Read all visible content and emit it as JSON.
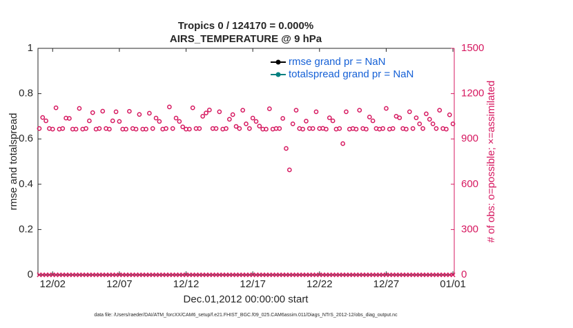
{
  "chart_data": {
    "type": "scatter",
    "title": "Tropics 0 / 124170 = 0.000%",
    "subtitle": "AIRS_TEMPERATURE @ 9 hPa",
    "xlabel": "Dec.01,2012 00:00:00 start",
    "ylabel": "rmse and totalspread",
    "y2label": "# of obs: o=possible; ×=assimilated",
    "footnote": "data file: /Users/raeder/DAI/ATM_forcXX/CAM6_setup/f.e21.FHIST_BGC.f09_025.CAM6assim.011/Diags_NTrS_2012-12/obs_diag_output.nc",
    "legend": "upper right",
    "xlim": [
      -0.1,
      31.1
    ],
    "xticks": [
      {
        "value": 1,
        "label": "12/02"
      },
      {
        "value": 6,
        "label": "12/07"
      },
      {
        "value": 11,
        "label": "12/12"
      },
      {
        "value": 16,
        "label": "12/17"
      },
      {
        "value": 21,
        "label": "12/22"
      },
      {
        "value": 26,
        "label": "12/27"
      },
      {
        "value": 31,
        "label": "01/01"
      }
    ],
    "ylim": [
      0,
      1
    ],
    "yticks": [
      0,
      0.2,
      0.4,
      0.6,
      0.8,
      1
    ],
    "y2lim": [
      0,
      1500
    ],
    "y2ticks": [
      0,
      300,
      600,
      900,
      1200,
      1500
    ],
    "x": [
      0,
      0.25,
      0.5,
      0.75,
      1,
      1.25,
      1.5,
      1.75,
      2,
      2.25,
      2.5,
      2.75,
      3,
      3.25,
      3.5,
      3.75,
      4,
      4.25,
      4.5,
      4.75,
      5,
      5.25,
      5.5,
      5.75,
      6,
      6.25,
      6.5,
      6.75,
      7,
      7.25,
      7.5,
      7.75,
      8,
      8.25,
      8.5,
      8.75,
      9,
      9.25,
      9.5,
      9.75,
      10,
      10.25,
      10.5,
      10.75,
      11,
      11.25,
      11.5,
      11.75,
      12,
      12.25,
      12.5,
      12.75,
      13,
      13.25,
      13.5,
      13.75,
      14,
      14.25,
      14.5,
      14.75,
      15,
      15.25,
      15.5,
      15.75,
      16,
      16.25,
      16.5,
      16.75,
      17,
      17.25,
      17.5,
      17.75,
      18,
      18.25,
      18.5,
      18.75,
      19,
      19.25,
      19.5,
      19.75,
      20,
      20.25,
      20.5,
      20.75,
      21,
      21.25,
      21.5,
      21.75,
      22,
      22.25,
      22.5,
      22.75,
      23,
      23.25,
      23.5,
      23.75,
      24,
      24.25,
      24.5,
      24.75,
      25,
      25.25,
      25.5,
      25.75,
      26,
      26.25,
      26.5,
      26.75,
      27,
      27.25,
      27.5,
      27.75,
      28,
      28.25,
      28.5,
      28.75,
      29,
      29.25,
      29.5,
      29.75,
      30,
      30.25,
      30.5,
      30.75,
      31
    ],
    "series": [
      {
        "name": "rmse grand pr = NaN",
        "color": "#000000"
      },
      {
        "name": "totalspread grand pr = NaN",
        "color": "#008080"
      },
      {
        "axis": "y2",
        "marker": "o",
        "color": "#d6175f",
        "values": [
          969,
          1042,
          1020,
          969,
          965,
          1106,
          965,
          969,
          1038,
          1036,
          965,
          965,
          1102,
          965,
          969,
          1020,
          1074,
          965,
          969,
          1084,
          969,
          965,
          1020,
          1080,
          1016,
          965,
          965,
          1083,
          969,
          965,
          1062,
          965,
          965,
          1070,
          969,
          1038,
          1016,
          965,
          969,
          1112,
          969,
          1038,
          1016,
          980,
          965,
          965,
          1106,
          969,
          969,
          1050,
          1072,
          1092,
          969,
          969,
          1080,
          965,
          969,
          1030,
          1061,
          983,
          969,
          1090,
          1000,
          969,
          1038,
          1016,
          985,
          965,
          965,
          1100,
          965,
          969,
          969,
          1036,
          837,
          695,
          1000,
          1090,
          969,
          965,
          1018,
          969,
          969,
          1080,
          969,
          970,
          965,
          1040,
          1020,
          965,
          969,
          869,
          1080,
          965,
          969,
          965,
          1090,
          969,
          965,
          1045,
          1020,
          969,
          965,
          969,
          1102,
          965,
          969,
          1050,
          1040,
          969,
          965,
          1080,
          969,
          1040,
          1000,
          969,
          1066,
          1030,
          1000,
          969,
          1090,
          969,
          965,
          1060,
          1000
        ]
      },
      {
        "axis": "y2",
        "marker": "x",
        "color": "#d6175f",
        "values": [
          0,
          0,
          0,
          0,
          0,
          0,
          0,
          0,
          0,
          0,
          0,
          0,
          0,
          0,
          0,
          0,
          0,
          0,
          0,
          0,
          0,
          0,
          0,
          0,
          0,
          0,
          0,
          0,
          0,
          0,
          0,
          0,
          0,
          0,
          0,
          0,
          0,
          0,
          0,
          0,
          0,
          0,
          0,
          0,
          0,
          0,
          0,
          0,
          0,
          0,
          0,
          0,
          0,
          0,
          0,
          0,
          0,
          0,
          0,
          0,
          0,
          0,
          0,
          0,
          0,
          0,
          0,
          0,
          0,
          0,
          0,
          0,
          0,
          0,
          0,
          0,
          0,
          0,
          0,
          0,
          0,
          0,
          0,
          0,
          0,
          0,
          0,
          0,
          0,
          0,
          0,
          0,
          0,
          0,
          0,
          0,
          0,
          0,
          0,
          0,
          0,
          0,
          0,
          0,
          0,
          0,
          0,
          0,
          0,
          0,
          0,
          0,
          0,
          0,
          0,
          0,
          0,
          0,
          0,
          0,
          0,
          0,
          0,
          0,
          0
        ]
      }
    ]
  }
}
